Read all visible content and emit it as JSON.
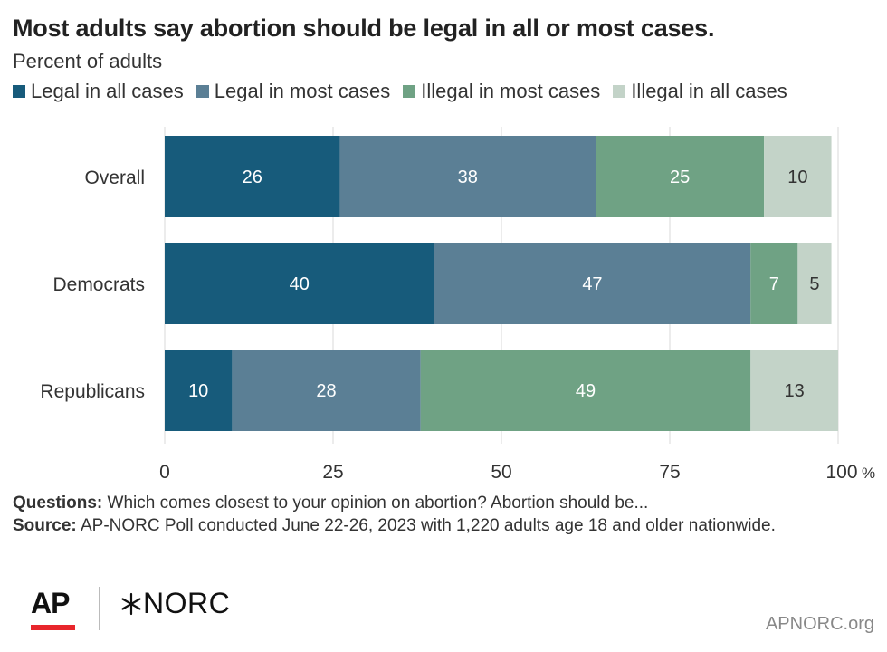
{
  "title": "Most adults say abortion should be legal in all or most cases.",
  "subtitle": "Percent of adults",
  "colors": {
    "legal_all": "#175b7b",
    "legal_most": "#5b7f95",
    "illegal_most": "#6fa284",
    "illegal_all": "#c3d3c8"
  },
  "chart_data": {
    "type": "bar",
    "orientation": "horizontal",
    "stacked": true,
    "categories": [
      "Overall",
      "Democrats",
      "Republicans"
    ],
    "series": [
      {
        "name": "Legal in all cases",
        "values": [
          26,
          40,
          10
        ]
      },
      {
        "name": "Legal in most cases",
        "values": [
          38,
          47,
          28
        ]
      },
      {
        "name": "Illegal in most cases",
        "values": [
          25,
          7,
          49
        ]
      },
      {
        "name": "Illegal in all cases",
        "values": [
          10,
          5,
          13
        ]
      }
    ],
    "xlim": [
      0,
      100
    ],
    "xticks": [
      "0",
      "25",
      "50",
      "75",
      "100"
    ],
    "x_unit": "%",
    "legend_position": "top",
    "grid": true
  },
  "notes": {
    "questions_label": "Questions:",
    "questions_text": "Which comes closest to your opinion on abortion? Abortion should be...",
    "source_label": "Source:",
    "source_text": "AP-NORC Poll conducted June 22-26, 2023 with 1,220 adults age 18 and older nationwide."
  },
  "logos": {
    "ap": "AP",
    "norc": "NORC"
  },
  "site": "APNORC.org"
}
